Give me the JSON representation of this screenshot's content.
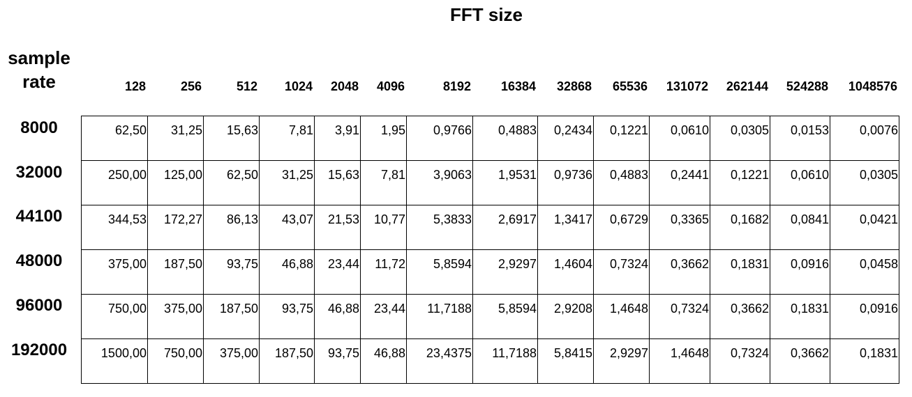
{
  "chart_data": {
    "type": "table",
    "title": "FFT size",
    "row_header_title": "sample rate",
    "columns": [
      "128",
      "256",
      "512",
      "1024",
      "2048",
      "4096",
      "8192",
      "16384",
      "32868",
      "65536",
      "131072",
      "262144",
      "524288",
      "1048576"
    ],
    "rows": [
      {
        "label": "8000",
        "values": [
          "62,50",
          "31,25",
          "15,63",
          "7,81",
          "3,91",
          "1,95",
          "0,9766",
          "0,4883",
          "0,2434",
          "0,1221",
          "0,0610",
          "0,0305",
          "0,0153",
          "0,0076"
        ]
      },
      {
        "label": "32000",
        "values": [
          "250,00",
          "125,00",
          "62,50",
          "31,25",
          "15,63",
          "7,81",
          "3,9063",
          "1,9531",
          "0,9736",
          "0,4883",
          "0,2441",
          "0,1221",
          "0,0610",
          "0,0305"
        ]
      },
      {
        "label": "44100",
        "values": [
          "344,53",
          "172,27",
          "86,13",
          "43,07",
          "21,53",
          "10,77",
          "5,3833",
          "2,6917",
          "1,3417",
          "0,6729",
          "0,3365",
          "0,1682",
          "0,0841",
          "0,0421"
        ]
      },
      {
        "label": "48000",
        "values": [
          "375,00",
          "187,50",
          "93,75",
          "46,88",
          "23,44",
          "11,72",
          "5,8594",
          "2,9297",
          "1,4604",
          "0,7324",
          "0,3662",
          "0,1831",
          "0,0916",
          "0,0458"
        ]
      },
      {
        "label": "96000",
        "values": [
          "750,00",
          "375,00",
          "187,50",
          "93,75",
          "46,88",
          "23,44",
          "11,7188",
          "5,8594",
          "2,9208",
          "1,4648",
          "0,7324",
          "0,3662",
          "0,1831",
          "0,0916"
        ]
      },
      {
        "label": "192000",
        "values": [
          "1500,00",
          "750,00",
          "375,00",
          "187,50",
          "93,75",
          "46,88",
          "23,4375",
          "11,7188",
          "5,8415",
          "2,9297",
          "1,4648",
          "0,7324",
          "0,3662",
          "0,1831"
        ]
      }
    ]
  }
}
